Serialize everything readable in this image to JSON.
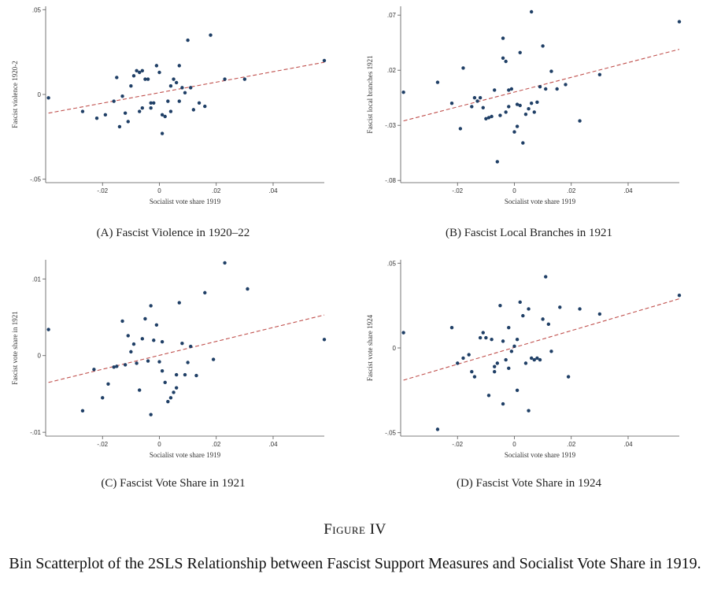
{
  "figure": {
    "title": "Figure IV",
    "subtitle": "Bin Scatterplot of the 2SLS Relationship between Fascist Support Measures and Socialist Vote Share in 1919."
  },
  "colors": {
    "dot": "#1f3f66",
    "fit": "#c0504d",
    "axis": "#555555"
  },
  "chart_data": [
    {
      "type": "scatter",
      "caption": "(A)  Fascist Violence in 1920–22",
      "xlabel": "Socialist vote share 1919",
      "ylabel": "Fascist violence 1920-2",
      "xlim": [
        -0.04,
        0.058
      ],
      "ylim": [
        -0.052,
        0.052
      ],
      "xticks": [
        -0.02,
        0,
        0.02,
        0.04
      ],
      "xtick_labels": [
        "-.02",
        "0",
        ".02",
        ".04"
      ],
      "yticks": [
        -0.05,
        0,
        0.05
      ],
      "ytick_labels": [
        "-.05",
        "0",
        ".05"
      ],
      "fit": [
        [
          -0.039,
          -0.011
        ],
        [
          0.058,
          0.019
        ]
      ],
      "points": [
        [
          -0.039,
          -0.002
        ],
        [
          -0.027,
          -0.01
        ],
        [
          -0.022,
          -0.014
        ],
        [
          -0.019,
          -0.012
        ],
        [
          -0.016,
          -0.004
        ],
        [
          -0.015,
          0.01
        ],
        [
          -0.014,
          -0.019
        ],
        [
          -0.013,
          -0.001
        ],
        [
          -0.012,
          -0.011
        ],
        [
          -0.011,
          -0.016
        ],
        [
          -0.01,
          0.005
        ],
        [
          -0.009,
          0.011
        ],
        [
          -0.008,
          0.014
        ],
        [
          -0.007,
          -0.01
        ],
        [
          -0.007,
          0.013
        ],
        [
          -0.006,
          -0.008
        ],
        [
          -0.006,
          0.014
        ],
        [
          -0.005,
          0.009
        ],
        [
          -0.004,
          0.009
        ],
        [
          -0.003,
          -0.005
        ],
        [
          -0.003,
          -0.008
        ],
        [
          -0.002,
          -0.005
        ],
        [
          -0.001,
          0.017
        ],
        [
          0.0,
          0.013
        ],
        [
          0.001,
          -0.023
        ],
        [
          0.001,
          -0.012
        ],
        [
          0.002,
          -0.013
        ],
        [
          0.003,
          -0.004
        ],
        [
          0.004,
          -0.01
        ],
        [
          0.004,
          0.005
        ],
        [
          0.005,
          0.009
        ],
        [
          0.006,
          0.007
        ],
        [
          0.007,
          -0.004
        ],
        [
          0.007,
          0.017
        ],
        [
          0.008,
          0.004
        ],
        [
          0.009,
          0.001
        ],
        [
          0.01,
          0.032
        ],
        [
          0.011,
          0.004
        ],
        [
          0.012,
          -0.009
        ],
        [
          0.014,
          -0.005
        ],
        [
          0.016,
          -0.007
        ],
        [
          0.018,
          0.035
        ],
        [
          0.023,
          0.009
        ],
        [
          0.03,
          0.009
        ],
        [
          0.058,
          0.02
        ]
      ]
    },
    {
      "type": "scatter",
      "caption": "(B)  Fascist Local Branches in 1921",
      "xlabel": "Socialist vote share 1919",
      "ylabel": "Fascist local branches 1921",
      "xlim": [
        -0.04,
        0.058
      ],
      "ylim": [
        -0.082,
        0.078
      ],
      "xticks": [
        -0.02,
        0,
        0.02,
        0.04
      ],
      "xtick_labels": [
        "-.02",
        "0",
        ".02",
        ".04"
      ],
      "yticks": [
        -0.08,
        -0.03,
        0.02,
        0.07
      ],
      "ytick_labels": [
        "-.08",
        "-.03",
        ".02",
        ".07"
      ],
      "fit": [
        [
          -0.039,
          -0.026
        ],
        [
          0.058,
          0.039
        ]
      ],
      "points": [
        [
          -0.039,
          0.0
        ],
        [
          -0.027,
          0.009
        ],
        [
          -0.022,
          -0.01
        ],
        [
          -0.019,
          -0.033
        ],
        [
          -0.018,
          0.022
        ],
        [
          -0.015,
          -0.013
        ],
        [
          -0.014,
          -0.005
        ],
        [
          -0.013,
          -0.008
        ],
        [
          -0.012,
          -0.005
        ],
        [
          -0.011,
          -0.014
        ],
        [
          -0.01,
          -0.024
        ],
        [
          -0.009,
          -0.023
        ],
        [
          -0.008,
          -0.022
        ],
        [
          -0.007,
          0.002
        ],
        [
          -0.006,
          -0.063
        ],
        [
          -0.005,
          -0.021
        ],
        [
          -0.004,
          0.049
        ],
        [
          -0.004,
          0.031
        ],
        [
          -0.003,
          0.028
        ],
        [
          -0.003,
          -0.018
        ],
        [
          -0.002,
          -0.013
        ],
        [
          -0.002,
          0.002
        ],
        [
          -0.001,
          0.003
        ],
        [
          0.0,
          -0.036
        ],
        [
          0.001,
          -0.011
        ],
        [
          0.001,
          -0.031
        ],
        [
          0.002,
          -0.012
        ],
        [
          0.002,
          0.036
        ],
        [
          0.003,
          -0.046
        ],
        [
          0.004,
          -0.02
        ],
        [
          0.005,
          -0.015
        ],
        [
          0.006,
          0.073
        ],
        [
          0.006,
          -0.01
        ],
        [
          0.007,
          -0.018
        ],
        [
          0.008,
          -0.009
        ],
        [
          0.009,
          0.005
        ],
        [
          0.01,
          0.042
        ],
        [
          0.011,
          0.003
        ],
        [
          0.013,
          0.019
        ],
        [
          0.015,
          0.003
        ],
        [
          0.018,
          0.007
        ],
        [
          0.023,
          -0.026
        ],
        [
          0.03,
          0.016
        ],
        [
          0.058,
          0.064
        ]
      ]
    },
    {
      "type": "scatter",
      "caption": "(C)  Fascist Vote Share in 1921",
      "xlabel": "Socialist vote share 1919",
      "ylabel": "Fascist vote share in 1921",
      "xlim": [
        -0.04,
        0.058
      ],
      "ylim": [
        -0.0105,
        0.0125
      ],
      "xticks": [
        -0.02,
        0,
        0.02,
        0.04
      ],
      "xtick_labels": [
        "-.02",
        "0",
        ".02",
        ".04"
      ],
      "yticks": [
        -0.01,
        0,
        0.01
      ],
      "ytick_labels": [
        "-.01",
        "0",
        ".01"
      ],
      "fit": [
        [
          -0.039,
          -0.0035
        ],
        [
          0.058,
          0.0053
        ]
      ],
      "points": [
        [
          -0.039,
          0.0034
        ],
        [
          -0.027,
          -0.0072
        ],
        [
          -0.023,
          -0.0018
        ],
        [
          -0.02,
          -0.0055
        ],
        [
          -0.018,
          -0.0037
        ],
        [
          -0.016,
          -0.0015
        ],
        [
          -0.015,
          -0.0014
        ],
        [
          -0.013,
          0.0045
        ],
        [
          -0.012,
          -0.0012
        ],
        [
          -0.011,
          0.0026
        ],
        [
          -0.01,
          0.0005
        ],
        [
          -0.009,
          0.0015
        ],
        [
          -0.008,
          -0.001
        ],
        [
          -0.007,
          -0.0045
        ],
        [
          -0.006,
          0.0022
        ],
        [
          -0.005,
          0.0048
        ],
        [
          -0.004,
          -0.0007
        ],
        [
          -0.003,
          0.0065
        ],
        [
          -0.003,
          -0.0077
        ],
        [
          -0.002,
          0.002
        ],
        [
          -0.001,
          0.004
        ],
        [
          0.0,
          -0.0008
        ],
        [
          0.001,
          -0.002
        ],
        [
          0.001,
          0.0018
        ],
        [
          0.002,
          -0.0035
        ],
        [
          0.003,
          -0.006
        ],
        [
          0.004,
          -0.0055
        ],
        [
          0.005,
          -0.0048
        ],
        [
          0.006,
          -0.0042
        ],
        [
          0.006,
          -0.0025
        ],
        [
          0.007,
          0.0069
        ],
        [
          0.008,
          0.0016
        ],
        [
          0.009,
          -0.0025
        ],
        [
          0.01,
          -0.0009
        ],
        [
          0.011,
          0.0012
        ],
        [
          0.013,
          -0.0026
        ],
        [
          0.016,
          0.0082
        ],
        [
          0.019,
          -0.0005
        ],
        [
          0.023,
          0.0121
        ],
        [
          0.031,
          0.0087
        ],
        [
          0.058,
          0.0021
        ]
      ]
    },
    {
      "type": "scatter",
      "caption": "(D)  Fascist Vote Share in 1924",
      "xlabel": "Socialist vote share 1919",
      "ylabel": "Fascist vote share 1924",
      "xlim": [
        -0.04,
        0.058
      ],
      "ylim": [
        -0.052,
        0.052
      ],
      "xticks": [
        -0.02,
        0,
        0.02,
        0.04
      ],
      "xtick_labels": [
        "-.02",
        "0",
        ".02",
        ".04"
      ],
      "yticks": [
        -0.05,
        0,
        0.05
      ],
      "ytick_labels": [
        "-.05",
        "0",
        ".05"
      ],
      "fit": [
        [
          -0.039,
          -0.019
        ],
        [
          0.058,
          0.029
        ]
      ],
      "points": [
        [
          -0.039,
          0.009
        ],
        [
          -0.027,
          -0.048
        ],
        [
          -0.022,
          0.012
        ],
        [
          -0.02,
          -0.009
        ],
        [
          -0.018,
          -0.006
        ],
        [
          -0.016,
          -0.004
        ],
        [
          -0.015,
          -0.014
        ],
        [
          -0.014,
          -0.017
        ],
        [
          -0.012,
          0.006
        ],
        [
          -0.011,
          0.009
        ],
        [
          -0.01,
          0.006
        ],
        [
          -0.009,
          -0.028
        ],
        [
          -0.008,
          0.005
        ],
        [
          -0.007,
          -0.011
        ],
        [
          -0.007,
          -0.014
        ],
        [
          -0.006,
          -0.009
        ],
        [
          -0.005,
          0.025
        ],
        [
          -0.004,
          -0.033
        ],
        [
          -0.004,
          0.004
        ],
        [
          -0.003,
          -0.007
        ],
        [
          -0.002,
          0.012
        ],
        [
          -0.002,
          -0.012
        ],
        [
          -0.001,
          -0.002
        ],
        [
          0.0,
          0.001
        ],
        [
          0.001,
          -0.025
        ],
        [
          0.001,
          0.005
        ],
        [
          0.002,
          0.027
        ],
        [
          0.003,
          0.019
        ],
        [
          0.004,
          -0.009
        ],
        [
          0.005,
          -0.037
        ],
        [
          0.005,
          0.023
        ],
        [
          0.006,
          -0.006
        ],
        [
          0.007,
          -0.007
        ],
        [
          0.008,
          -0.006
        ],
        [
          0.009,
          -0.007
        ],
        [
          0.01,
          0.017
        ],
        [
          0.011,
          0.042
        ],
        [
          0.012,
          0.014
        ],
        [
          0.013,
          -0.002
        ],
        [
          0.016,
          0.024
        ],
        [
          0.019,
          -0.017
        ],
        [
          0.023,
          0.023
        ],
        [
          0.03,
          0.02
        ],
        [
          0.058,
          0.031
        ]
      ]
    }
  ]
}
